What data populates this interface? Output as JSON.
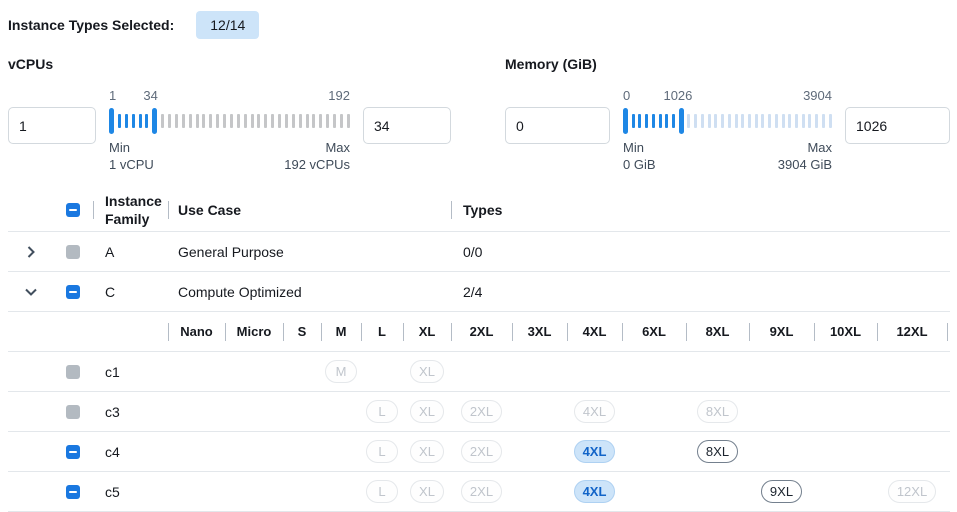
{
  "topbar": {
    "label": "Instance Types Selected:",
    "badge": "12/14"
  },
  "filters": [
    {
      "id": "vcpus",
      "title": "vCPUs",
      "from_value": "1",
      "to_value": "34",
      "range": {
        "min": 1,
        "max": 192,
        "from": 1,
        "to": 34
      },
      "scale_labels": {
        "min": "1",
        "current": "34",
        "max": "192"
      },
      "min_label": "Min",
      "min_detail": "1 vCPU",
      "max_label": "Max",
      "max_detail": "192 vCPUs",
      "colors": {
        "active": "#1e87e5",
        "inactive": "#c5c6c8"
      }
    },
    {
      "id": "memory",
      "title": "Memory (GiB)",
      "from_value": "0",
      "to_value": "1026",
      "range": {
        "min": 0,
        "max": 3904,
        "from": 0,
        "to": 1026
      },
      "scale_labels": {
        "min": "0",
        "current": "1026",
        "max": "3904"
      },
      "min_label": "Min",
      "min_detail": "0 GiB",
      "max_label": "Max",
      "max_detail": "3904 GiB",
      "colors": {
        "active": "#1e87e5",
        "inactive": "#cfdff2"
      }
    }
  ],
  "table": {
    "header_checkbox": "indeterminate",
    "headers": {
      "family": "Instance Family",
      "use_case": "Use Case",
      "types": "Types"
    },
    "size_columns": [
      "Nano",
      "Micro",
      "S",
      "M",
      "L",
      "XL",
      "2XL",
      "3XL",
      "4XL",
      "6XL",
      "8XL",
      "9XL",
      "10XL",
      "12XL"
    ],
    "rows": [
      {
        "kind": "family",
        "expand": "collapsed",
        "checkbox": "disabled",
        "family": "A",
        "use_case": "General Purpose",
        "types": "0/0"
      },
      {
        "kind": "family",
        "expand": "expanded",
        "checkbox": "indeterminate",
        "family": "C",
        "use_case": "Compute Optimized",
        "types": "2/4"
      },
      {
        "kind": "size_header"
      },
      {
        "kind": "instance",
        "checkbox": "disabled",
        "name": "c1",
        "pills": [
          {
            "size": "M",
            "state": "disabled"
          },
          {
            "size": "XL",
            "state": "disabled"
          }
        ]
      },
      {
        "kind": "instance",
        "checkbox": "disabled",
        "name": "c3",
        "pills": [
          {
            "size": "L",
            "state": "disabled"
          },
          {
            "size": "XL",
            "state": "disabled"
          },
          {
            "size": "2XL",
            "state": "disabled"
          },
          {
            "size": "4XL",
            "state": "disabled"
          },
          {
            "size": "8XL",
            "state": "disabled"
          }
        ]
      },
      {
        "kind": "instance",
        "checkbox": "indeterminate",
        "name": "c4",
        "pills": [
          {
            "size": "L",
            "state": "disabled"
          },
          {
            "size": "XL",
            "state": "disabled"
          },
          {
            "size": "2XL",
            "state": "disabled"
          },
          {
            "size": "4XL",
            "state": "selected"
          },
          {
            "size": "8XL",
            "state": "available"
          }
        ]
      },
      {
        "kind": "instance",
        "checkbox": "indeterminate",
        "name": "c5",
        "pills": [
          {
            "size": "L",
            "state": "disabled"
          },
          {
            "size": "XL",
            "state": "disabled"
          },
          {
            "size": "2XL",
            "state": "disabled"
          },
          {
            "size": "4XL",
            "state": "selected"
          },
          {
            "size": "9XL",
            "state": "available"
          },
          {
            "size": "12XL",
            "state": "disabled"
          }
        ]
      }
    ]
  }
}
